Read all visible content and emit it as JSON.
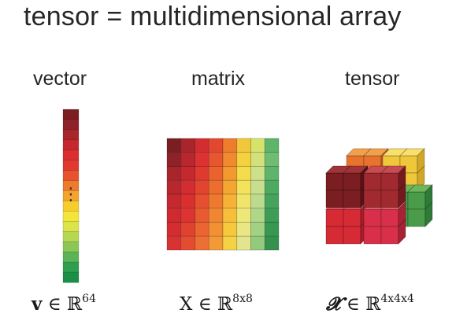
{
  "title": "tensor = multidimensional array",
  "labels": {
    "vector": "vector",
    "matrix": "matrix",
    "tensor": "tensor"
  },
  "formulas": {
    "vector": {
      "symbol": "v",
      "op": "∈",
      "set": "ℝ",
      "dims": "64"
    },
    "matrix": {
      "symbol": "X",
      "op": "∈",
      "set": "ℝ",
      "dims": "8x8"
    },
    "tensor": {
      "symbol": "𝓧",
      "op": "∈",
      "set": "ℝ",
      "dims": "4x4x4"
    }
  },
  "vector_ellipsis": "⋮",
  "colors": {
    "vector": [
      "#7a1e22",
      "#8f2228",
      "#a8262b",
      "#c5282e",
      "#d9302f",
      "#e0392f",
      "#e7532e",
      "#ee7a2d",
      "#f4a32c",
      "#f7cc2d",
      "#f2e63a",
      "#dbe54a",
      "#b6d850",
      "#8cc755",
      "#5db456",
      "#2f9e4f",
      "#1c8f46"
    ],
    "matrix": [
      [
        "#7a1e22",
        "#a8262b",
        "#d42d31",
        "#e2482f",
        "#ef7b2d",
        "#f1c83a",
        "#d6e36a",
        "#5db46a"
      ],
      [
        "#8f2228",
        "#b7272d",
        "#dc3332",
        "#e7562f",
        "#f18a2e",
        "#f4d23f",
        "#d2e17a",
        "#6fbd73"
      ],
      [
        "#a8262b",
        "#c5282e",
        "#e0392f",
        "#ea632f",
        "#f3992f",
        "#f5dc4a",
        "#cde08a",
        "#5fb36c"
      ],
      [
        "#b7272d",
        "#d42d31",
        "#e2452f",
        "#ec6e2f",
        "#f4a632",
        "#f3e25c",
        "#c6de8e",
        "#4ea962"
      ],
      [
        "#c5282e",
        "#d9302f",
        "#e64f2f",
        "#ee7a30",
        "#f6b236",
        "#f0e56a",
        "#bcdb8e",
        "#45a35c"
      ],
      [
        "#cf2a30",
        "#dc3432",
        "#e85a30",
        "#f08532",
        "#f7be3a",
        "#ede878",
        "#b0d68a",
        "#3d9d57"
      ],
      [
        "#d42d31",
        "#e04230",
        "#ea6531",
        "#f29034",
        "#f6c83e",
        "#e8e784",
        "#a3d184",
        "#389852"
      ],
      [
        "#d93232",
        "#e34c31",
        "#ec6f33",
        "#f39a36",
        "#f5d145",
        "#e2e48e",
        "#94ca7c",
        "#34924e"
      ]
    ],
    "tensor_cubes": [
      {
        "front": "#e8732f",
        "top": "#f2a04a",
        "side": "#c95a24"
      },
      {
        "front": "#f0c73a",
        "top": "#f8e06a",
        "side": "#d1a728"
      },
      {
        "front": "#4a9b4a",
        "top": "#6cb55d",
        "side": "#2f7a36"
      },
      {
        "front": "#d62a35",
        "top": "#e86070",
        "side": "#a81e28"
      },
      {
        "front": "#d8304a",
        "top": "#ee7080",
        "side": "#a82236"
      },
      {
        "front": "#7a1e22",
        "top": "#a03436",
        "side": "#5a1214"
      },
      {
        "front": "#a02a30",
        "top": "#c84a52",
        "side": "#741a1e"
      }
    ]
  }
}
